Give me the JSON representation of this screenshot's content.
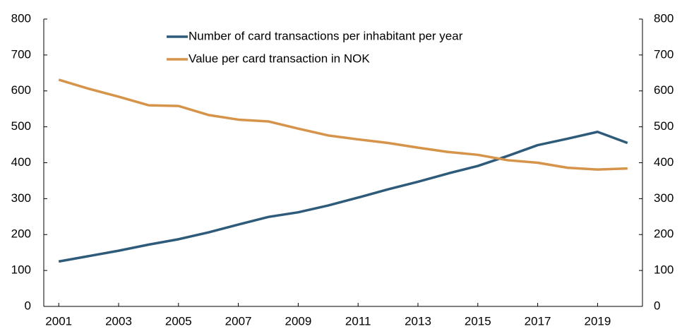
{
  "chart_data": {
    "type": "line",
    "x": [
      2001,
      2002,
      2003,
      2004,
      2005,
      2006,
      2007,
      2008,
      2009,
      2010,
      2011,
      2012,
      2013,
      2014,
      2015,
      2016,
      2017,
      2018,
      2019,
      2020
    ],
    "series": [
      {
        "name": "Number of card transactions per inhabitant per year",
        "color": "#2e5b7a",
        "values": [
          125,
          140,
          155,
          172,
          187,
          206,
          228,
          249,
          262,
          281,
          303,
          326,
          347,
          370,
          391,
          419,
          449,
          467,
          486,
          455
        ]
      },
      {
        "name": "Value per card transaction in NOK",
        "color": "#d6944a",
        "values": [
          631,
          606,
          584,
          560,
          558,
          533,
          520,
          515,
          495,
          476,
          465,
          455,
          442,
          430,
          422,
          407,
          400,
          386,
          381,
          384
        ]
      }
    ],
    "xlim": [
      2000.5,
      2020.5
    ],
    "xticks": [
      2001,
      2003,
      2005,
      2007,
      2009,
      2011,
      2013,
      2015,
      2017,
      2019
    ],
    "ylim": [
      0,
      800
    ],
    "yticks": [
      0,
      100,
      200,
      300,
      400,
      500,
      600,
      700,
      800
    ],
    "y2lim": [
      0,
      800
    ],
    "y2ticks": [
      0,
      100,
      200,
      300,
      400,
      500,
      600,
      700,
      800
    ],
    "legend": "top"
  }
}
